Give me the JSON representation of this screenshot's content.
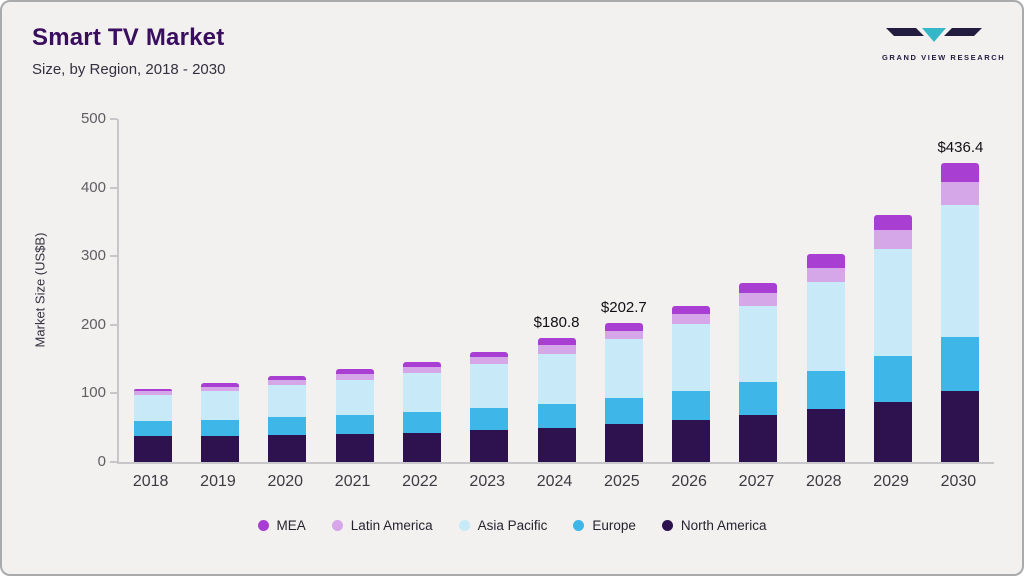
{
  "header": {
    "title": "Smart TV Market",
    "subtitle": "Size, by Region, 2018 - 2030",
    "logo_text": "GRAND VIEW RESEARCH"
  },
  "chart_data": {
    "type": "bar",
    "stacked": true,
    "title": "Smart TV Market Size, by Region, 2018 - 2030",
    "xlabel": "",
    "ylabel": "Market Size (US$B)",
    "ylim": [
      0,
      500
    ],
    "yticks": [
      0,
      100,
      200,
      300,
      400,
      500
    ],
    "grid": false,
    "legend_position": "bottom",
    "categories": [
      "2018",
      "2019",
      "2020",
      "2021",
      "2022",
      "2023",
      "2024",
      "2025",
      "2026",
      "2027",
      "2028",
      "2029",
      "2030"
    ],
    "series": [
      {
        "name": "North America",
        "color": "#2e1250",
        "values": [
          38,
          38,
          40,
          41,
          43,
          46,
          50,
          55,
          61,
          68,
          77,
          88,
          103
        ]
      },
      {
        "name": "Europe",
        "color": "#3fb6e8",
        "values": [
          22,
          23,
          25,
          27,
          30,
          33,
          35,
          39,
          43,
          48,
          55,
          66,
          79
        ]
      },
      {
        "name": "Asia Pacific",
        "color": "#c8e9f8",
        "values": [
          38,
          43,
          47,
          52,
          57,
          64,
          73,
          85,
          97,
          112,
          130,
          156,
          193
        ]
      },
      {
        "name": "Latin America",
        "color": "#d5a6e8",
        "values": [
          5,
          6,
          7,
          8,
          9,
          10,
          12.8,
          12.7,
          15,
          18,
          21,
          28,
          33
        ]
      },
      {
        "name": "MEA",
        "color": "#a83fd2",
        "values": [
          4,
          5,
          6,
          7,
          7,
          8,
          10,
          11,
          12,
          15,
          20,
          22,
          28.4
        ]
      }
    ],
    "annotations": [
      {
        "category": "2024",
        "label": "$180.8"
      },
      {
        "category": "2025",
        "label": "$202.7"
      },
      {
        "category": "2030",
        "label": "$436.4"
      }
    ],
    "legend_order": [
      "MEA",
      "Latin America",
      "Asia Pacific",
      "Europe",
      "North America"
    ]
  }
}
